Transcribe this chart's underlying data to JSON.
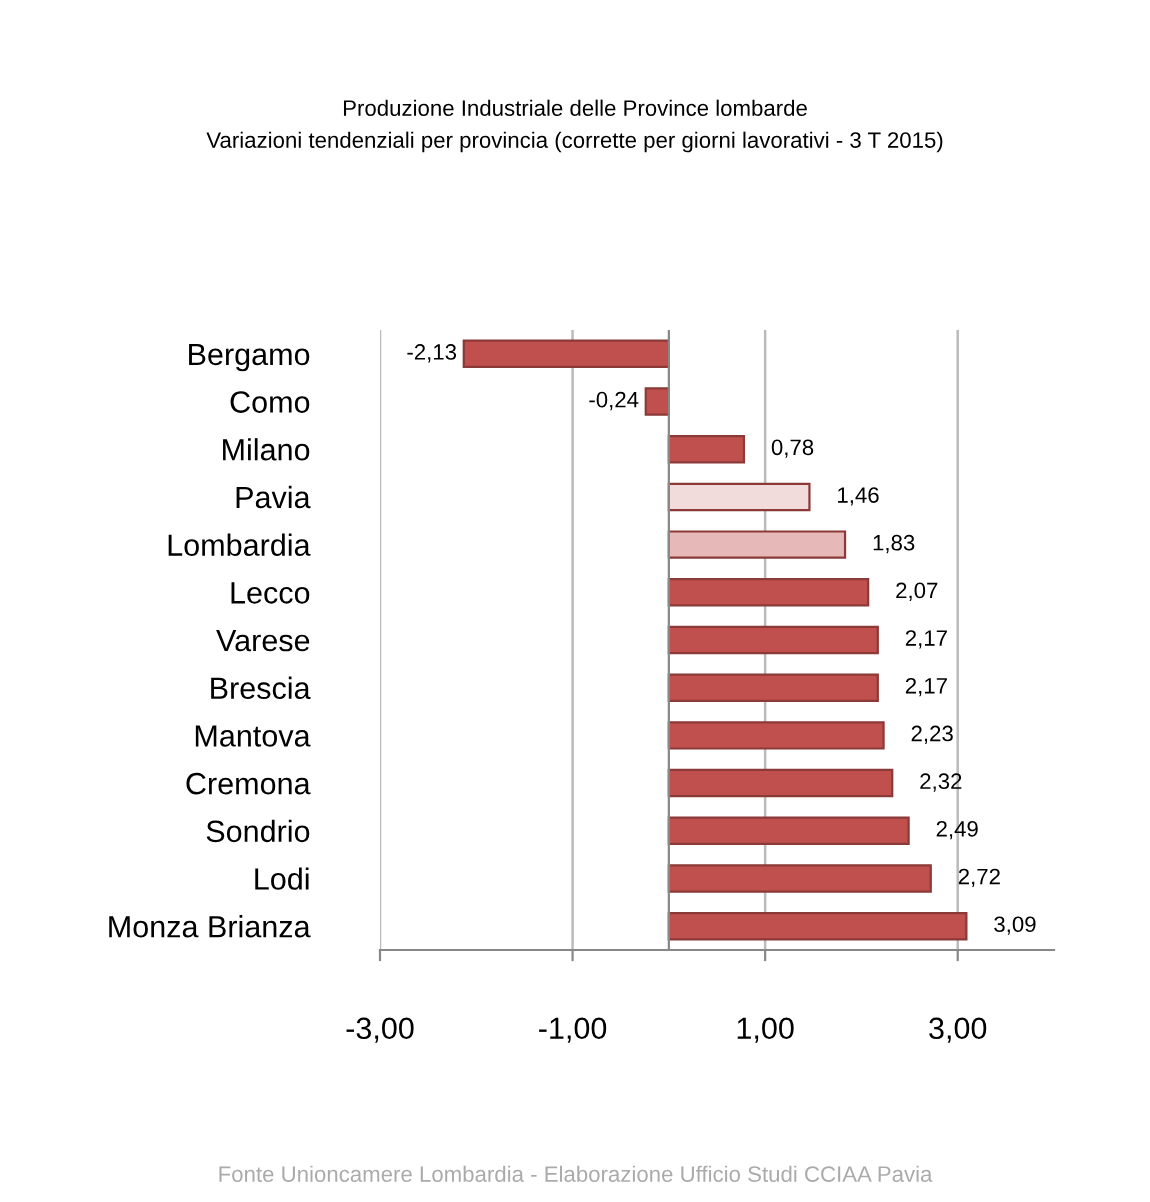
{
  "chart_data": {
    "type": "bar",
    "orientation": "horizontal",
    "title": "Produzione Industriale delle Province lombarde",
    "subtitle": "Variazioni tendenziali per provincia (corrette per giorni lavorativi - 3 T 2015)",
    "categories": [
      "Bergamo",
      "Como",
      "Milano",
      "Pavia",
      "Lombardia",
      "Lecco",
      "Varese",
      "Brescia",
      "Mantova",
      "Cremona",
      "Sondrio",
      "Lodi",
      "Monza Brianza"
    ],
    "values": [
      -2.13,
      -0.24,
      0.78,
      1.46,
      1.83,
      2.07,
      2.17,
      2.17,
      2.23,
      2.32,
      2.49,
      2.72,
      3.09
    ],
    "value_labels": [
      "-2,13",
      "-0,24",
      "0,78",
      "1,46",
      "1,83",
      "2,07",
      "2,17",
      "2,17",
      "2,23",
      "2,32",
      "2,49",
      "2,72",
      "3,09"
    ],
    "colors": [
      "#c0504d",
      "#c0504d",
      "#c0504d",
      "#f2dcdb",
      "#e6b9b8",
      "#c0504d",
      "#c0504d",
      "#c0504d",
      "#c0504d",
      "#c0504d",
      "#c0504d",
      "#c0504d",
      "#c0504d"
    ],
    "xlim": [
      -3,
      4
    ],
    "xticks": [
      {
        "value": -3,
        "label": "-3,00"
      },
      {
        "value": -1,
        "label": "-1,00"
      },
      {
        "value": 1,
        "label": "1,00"
      },
      {
        "value": 3,
        "label": "3,00"
      }
    ],
    "grid": "x",
    "annotations": [
      "Fonte Unioncamere Lombardia - Elaborazione Ufficio Studi CCIAA Pavia"
    ]
  }
}
